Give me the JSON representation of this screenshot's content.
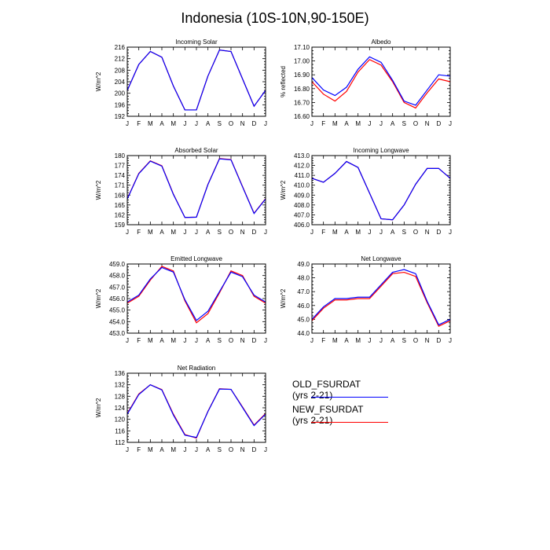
{
  "title": "Indonesia (10S-10N,90-150E)",
  "months": [
    "J",
    "F",
    "M",
    "A",
    "M",
    "J",
    "J",
    "A",
    "S",
    "O",
    "N",
    "D",
    "J"
  ],
  "series_style": [
    {
      "name": "OLD_FSURDAT (yrs 2-21)",
      "color": "#0000ff"
    },
    {
      "name": "NEW_FSURDAT (yrs 2-21)",
      "color": "#ff0000"
    }
  ],
  "chart_data": [
    {
      "type": "line",
      "title": "Incoming Solar",
      "ylabel": "W/m^2",
      "ylim": [
        192,
        216
      ],
      "yticks": [
        "192",
        "196",
        "200",
        "204",
        "208",
        "212",
        "216"
      ],
      "series": [
        {
          "name": "OLD_FSURDAT (yrs 2-21)",
          "values": [
            201.0,
            210.0,
            214.5,
            212.5,
            202.5,
            194.2,
            194.2,
            206.0,
            215.0,
            214.5,
            205.0,
            195.5,
            201.0
          ]
        },
        {
          "name": "NEW_FSURDAT (yrs 2-21)",
          "values": [
            201.0,
            210.0,
            214.5,
            212.5,
            202.5,
            194.2,
            194.2,
            206.0,
            215.0,
            214.5,
            205.0,
            195.5,
            201.0
          ]
        }
      ]
    },
    {
      "type": "line",
      "title": "Albedo",
      "ylabel": "% reflected",
      "ylim": [
        16.6,
        17.1
      ],
      "yticks": [
        "16.60",
        "16.70",
        "16.80",
        "16.90",
        "17.00",
        "17.10"
      ],
      "series": [
        {
          "name": "OLD_FSURDAT (yrs 2-21)",
          "values": [
            16.88,
            16.79,
            16.75,
            16.81,
            16.94,
            17.03,
            16.99,
            16.86,
            16.71,
            16.68,
            16.79,
            16.9,
            16.89
          ]
        },
        {
          "name": "NEW_FSURDAT (yrs 2-21)",
          "values": [
            16.85,
            16.76,
            16.71,
            16.78,
            16.92,
            17.01,
            16.97,
            16.85,
            16.7,
            16.66,
            16.77,
            16.87,
            16.85
          ]
        }
      ]
    },
    {
      "type": "line",
      "title": "Absorbed Solar",
      "ylabel": "W/m^2",
      "ylim": [
        159,
        180
      ],
      "yticks": [
        "159",
        "162",
        "165",
        "168",
        "171",
        "174",
        "177",
        "180"
      ],
      "series": [
        {
          "name": "OLD_FSURDAT (yrs 2-21)",
          "values": [
            166.8,
            174.5,
            178.3,
            176.8,
            168.2,
            161.2,
            161.3,
            171.2,
            179.0,
            178.7,
            170.5,
            162.4,
            166.8
          ]
        },
        {
          "name": "NEW_FSURDAT (yrs 2-21)",
          "values": [
            166.9,
            174.6,
            178.4,
            176.9,
            168.3,
            161.2,
            161.3,
            171.3,
            179.1,
            178.8,
            170.6,
            162.5,
            166.9
          ]
        }
      ]
    },
    {
      "type": "line",
      "title": "Incoming Longwave",
      "ylabel": "W/m^2",
      "ylim": [
        406,
        413
      ],
      "yticks": [
        "406.0",
        "407.0",
        "408.0",
        "409.0",
        "410.0",
        "411.0",
        "412.0",
        "413.0"
      ],
      "series": [
        {
          "name": "OLD_FSURDAT (yrs 2-21)",
          "values": [
            410.7,
            410.3,
            411.2,
            412.4,
            411.8,
            409.2,
            406.6,
            406.5,
            408.0,
            410.1,
            411.7,
            411.7,
            410.7
          ]
        },
        {
          "name": "NEW_FSURDAT (yrs 2-21)",
          "values": [
            410.7,
            410.3,
            411.2,
            412.4,
            411.8,
            409.2,
            406.6,
            406.5,
            408.0,
            410.1,
            411.7,
            411.7,
            410.7
          ]
        }
      ]
    },
    {
      "type": "line",
      "title": "Emitted Longwave",
      "ylabel": "W/m^2",
      "ylim": [
        453,
        459
      ],
      "yticks": [
        "453.0",
        "454.0",
        "455.0",
        "456.0",
        "457.0",
        "458.0",
        "459.0"
      ],
      "series": [
        {
          "name": "OLD_FSURDAT (yrs 2-21)",
          "values": [
            455.7,
            456.3,
            457.7,
            458.7,
            458.3,
            455.9,
            454.1,
            454.9,
            456.6,
            458.3,
            457.9,
            456.3,
            455.7
          ]
        },
        {
          "name": "NEW_FSURDAT (yrs 2-21)",
          "values": [
            455.6,
            456.2,
            457.6,
            458.8,
            458.4,
            455.8,
            453.9,
            454.7,
            456.5,
            458.4,
            458.0,
            456.2,
            455.6
          ]
        }
      ]
    },
    {
      "type": "line",
      "title": "Net Longwave",
      "ylabel": "W/m^2",
      "ylim": [
        44,
        49
      ],
      "yticks": [
        "44.0",
        "45.0",
        "46.0",
        "47.0",
        "48.0",
        "49.0"
      ],
      "series": [
        {
          "name": "OLD_FSURDAT (yrs 2-21)",
          "values": [
            45.0,
            45.9,
            46.5,
            46.5,
            46.6,
            46.6,
            47.5,
            48.4,
            48.6,
            48.3,
            46.3,
            44.6,
            45.0
          ]
        },
        {
          "name": "NEW_FSURDAT (yrs 2-21)",
          "values": [
            44.9,
            45.8,
            46.4,
            46.4,
            46.5,
            46.5,
            47.4,
            48.3,
            48.4,
            48.1,
            46.2,
            44.5,
            44.9
          ]
        }
      ]
    },
    {
      "type": "line",
      "title": "Net Radiation",
      "ylabel": "W/m^2",
      "ylim": [
        112,
        136
      ],
      "yticks": [
        "112",
        "116",
        "120",
        "124",
        "128",
        "132",
        "136"
      ],
      "series": [
        {
          "name": "OLD_FSURDAT (yrs 2-21)",
          "values": [
            121.8,
            128.6,
            132.0,
            130.2,
            121.5,
            114.5,
            113.7,
            122.7,
            130.5,
            130.4,
            124.1,
            117.8,
            121.8
          ]
        },
        {
          "name": "NEW_FSURDAT (yrs 2-21)",
          "values": [
            122.0,
            128.8,
            132.0,
            130.3,
            121.8,
            114.7,
            113.5,
            122.8,
            130.6,
            130.4,
            124.3,
            118.0,
            122.0
          ]
        }
      ]
    }
  ]
}
